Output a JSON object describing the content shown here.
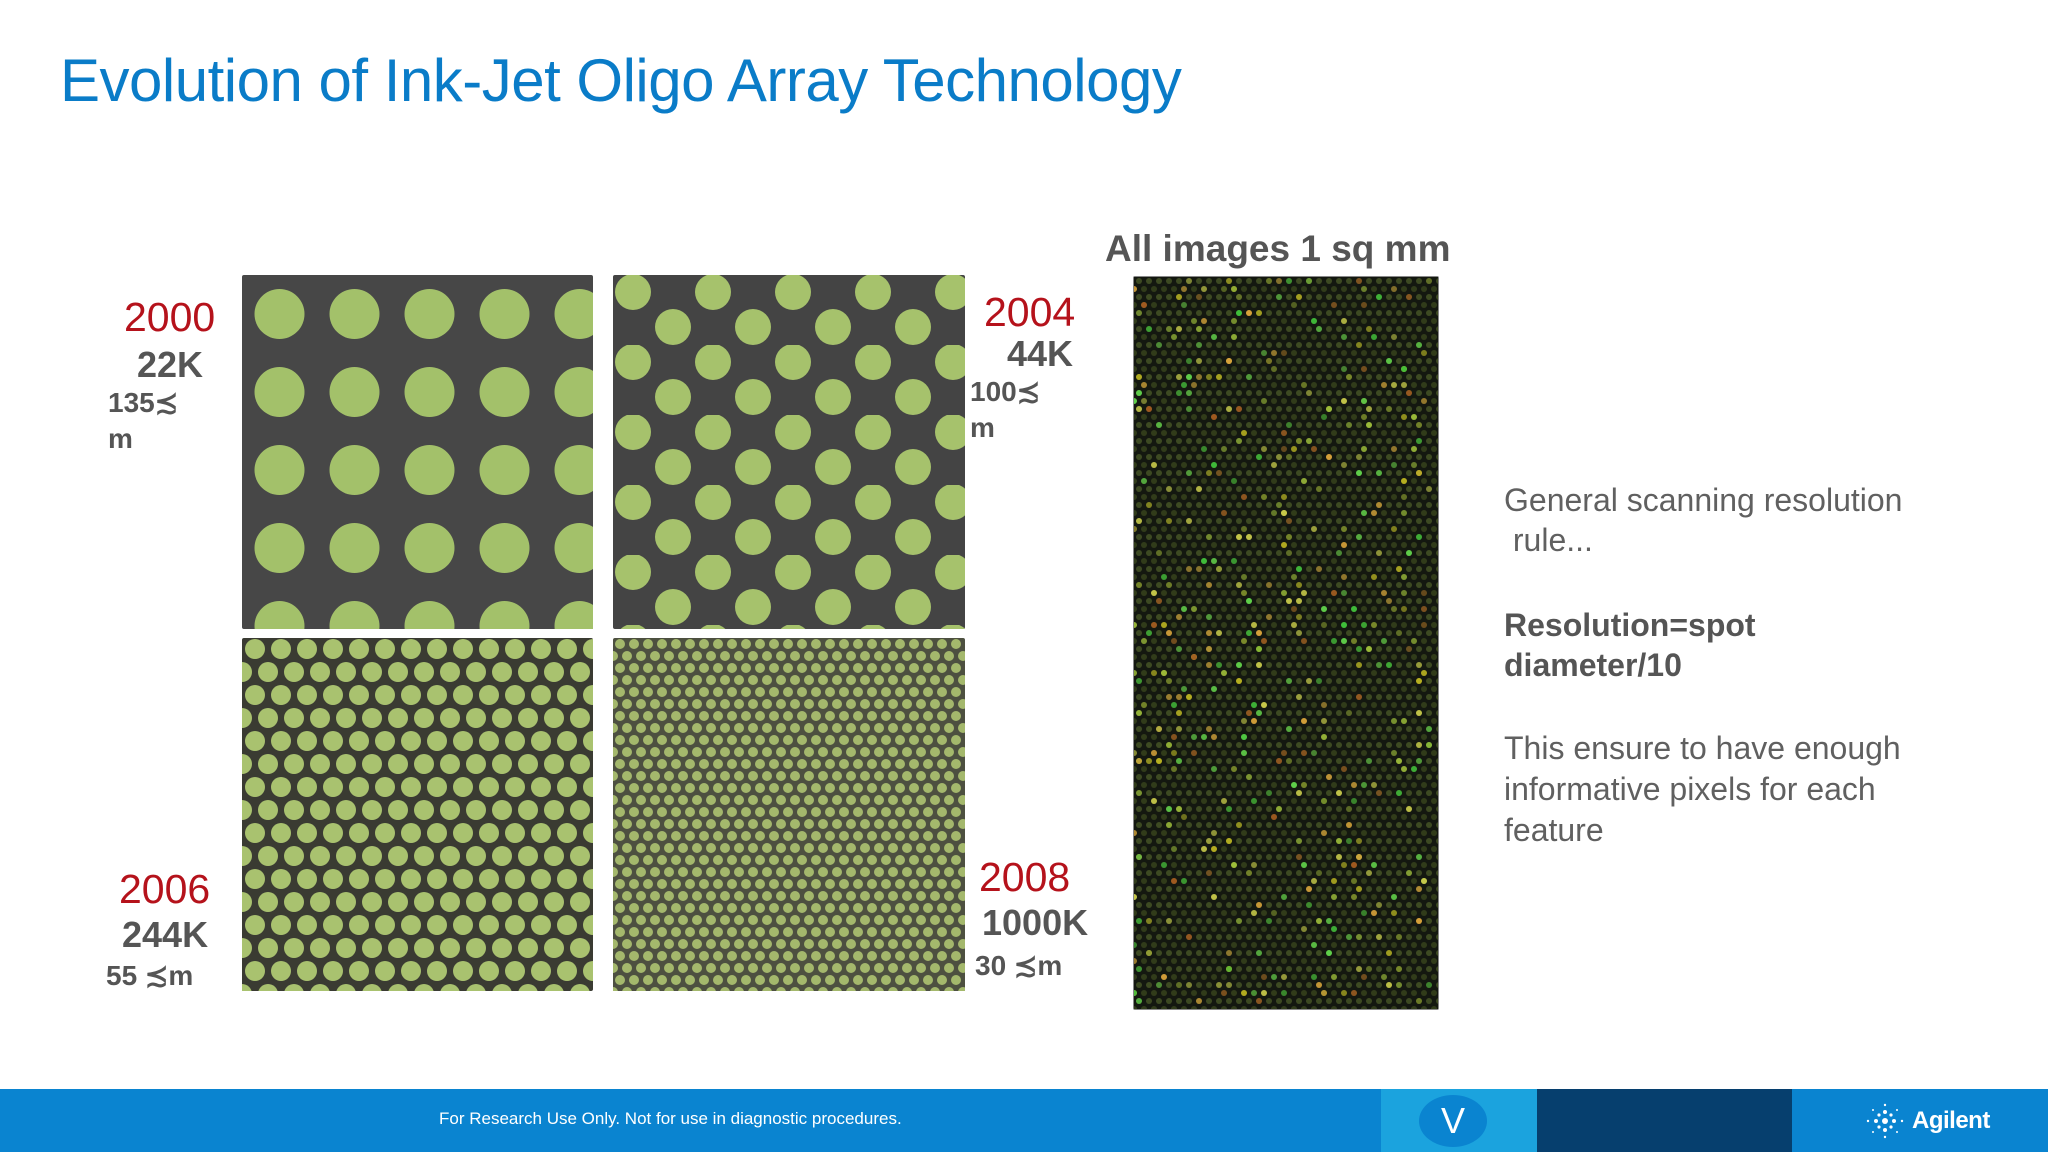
{
  "slide": {
    "title": "Evolution of Ink-Jet Oligo Array Technology"
  },
  "arrays": [
    {
      "year": "2000",
      "count": "22K",
      "size_line1": "135≾",
      "size_line2": "m"
    },
    {
      "year": "2004",
      "count": "44K",
      "size_line1": "100≾",
      "size_line2": "m"
    },
    {
      "year": "2006",
      "count": "244K",
      "size_line1": "55 ≾m"
    },
    {
      "year": "2008",
      "count": "1000K",
      "size_line1": "30 ≾m"
    }
  ],
  "microarray_image": {
    "caption": "All images 1 sq mm"
  },
  "notes": {
    "line1": "General scanning resolution",
    "line2": " rule...",
    "bold_line1": "Resolution=spot",
    "bold_line2": "diameter/10",
    "para_line1": "This ensure to have enough",
    "para_line2": "informative pixels for each",
    "para_line3": "feature"
  },
  "footer": {
    "disclaimer": "For Research Use Only. Not for use in diagnostic procedures.",
    "badge_letter": "V",
    "brand": "Agilent"
  },
  "colors": {
    "title": "#0a7cc8",
    "year": "#b5121b",
    "spot": "#a3c16a",
    "footer_blue": "#0a84d0",
    "footer_light": "#1ba3de",
    "footer_dark": "#063f6e"
  }
}
